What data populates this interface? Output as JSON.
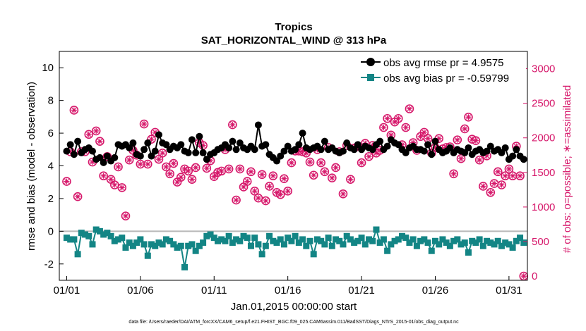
{
  "chart_data": {
    "type": "line",
    "title": "Tropics",
    "subtitle": "SAT_HORIZONTAL_WIND @ 313 hPa",
    "xlabel": "Jan.01,2015 00:00:00 start",
    "ylabel_left": "rmse and bias (model - observation)",
    "ylabel_right": "# of obs: o=possible; ∗=assimilated",
    "footer": "data file: /Users/raeder/DAI/ATM_forcXX/CAM6_setup/f.e21.FHIST_BGC.f09_025.CAM6assim.011/BadSST/Diags_NTrS_2015-01/obs_diag_output.nc",
    "x_ticks": [
      "01/01",
      "01/06",
      "01/11",
      "01/16",
      "01/21",
      "01/26",
      "01/31"
    ],
    "x_tick_days": [
      0,
      5,
      10,
      15,
      20,
      25,
      30
    ],
    "xlim": [
      -0.5,
      31.25
    ],
    "ylim_left": [
      -3,
      11
    ],
    "y_ticks_left": [
      "-2",
      "0",
      "2",
      "4",
      "6",
      "8",
      "10"
    ],
    "ylim_right": [
      -60,
      3250
    ],
    "y_ticks_right": [
      "0",
      "500",
      "1000",
      "1500",
      "2000",
      "2500",
      "3000"
    ],
    "zero_line": 0,
    "legend": {
      "position": "top-right",
      "entries": [
        "obs avg rmse pr = 4.9575",
        "obs avg bias pr = -0.59799"
      ]
    },
    "colors": {
      "rmse": "#000000",
      "bias": "#138585",
      "obs": "#d6176a",
      "zero_line": "#b8b8b8"
    },
    "x_days": [
      0,
      0.25,
      0.5,
      0.75,
      1,
      1.25,
      1.5,
      1.75,
      2,
      2.25,
      2.5,
      2.75,
      3,
      3.25,
      3.5,
      3.75,
      4,
      4.25,
      4.5,
      4.75,
      5,
      5.25,
      5.5,
      5.75,
      6,
      6.25,
      6.5,
      6.75,
      7,
      7.25,
      7.5,
      7.75,
      8,
      8.25,
      8.5,
      8.75,
      9,
      9.25,
      9.5,
      9.75,
      10,
      10.25,
      10.5,
      10.75,
      11,
      11.25,
      11.5,
      11.75,
      12,
      12.25,
      12.5,
      12.75,
      13,
      13.25,
      13.5,
      13.75,
      14,
      14.25,
      14.5,
      14.75,
      15,
      15.25,
      15.5,
      15.75,
      16,
      16.25,
      16.5,
      16.75,
      17,
      17.25,
      17.5,
      17.75,
      18,
      18.25,
      18.5,
      18.75,
      19,
      19.25,
      19.5,
      19.75,
      20,
      20.25,
      20.5,
      20.75,
      21,
      21.25,
      21.5,
      21.75,
      22,
      22.25,
      22.5,
      22.75,
      23,
      23.25,
      23.5,
      23.75,
      24,
      24.25,
      24.5,
      24.75,
      25,
      25.25,
      25.5,
      25.75,
      26,
      26.25,
      26.5,
      26.75,
      27,
      27.25,
      27.5,
      27.75,
      28,
      28.25,
      28.5,
      28.75,
      29,
      29.25,
      29.5,
      29.75,
      30,
      30.25,
      30.5,
      30.75,
      31
    ],
    "series": [
      {
        "name": "obs avg rmse pr = 4.9575",
        "axis": "left",
        "values": [
          4.9,
          5.3,
          4.7,
          5.5,
          4.8,
          5.0,
          5.1,
          4.9,
          4.4,
          4.5,
          4.2,
          4.6,
          4.3,
          4.5,
          5.3,
          5.2,
          5.3,
          5.1,
          5.4,
          4.7,
          4.6,
          5.0,
          5.4,
          4.6,
          4.9,
          5.9,
          5.4,
          5.3,
          5.0,
          5.2,
          5.1,
          5.3,
          4.9,
          4.8,
          5.6,
          4.8,
          5.8,
          4.8,
          4.4,
          4.7,
          4.8,
          5.0,
          5.1,
          5.3,
          5.1,
          5.5,
          5.0,
          5.4,
          5.1,
          5.0,
          5.2,
          5.0,
          6.5,
          5.2,
          5.3,
          4.7,
          4.5,
          4.3,
          4.6,
          4.9,
          5.2,
          4.9,
          5.0,
          5.3,
          6.0,
          5.1,
          5.0,
          5.1,
          5.2,
          5.0,
          5.5,
          5.0,
          5.1,
          4.9,
          4.8,
          4.9,
          5.4,
          5.1,
          5.0,
          5.3,
          5.0,
          5.2,
          5.1,
          5.0,
          5.3,
          5.5,
          5.0,
          5.2,
          5.6,
          5.4,
          5.3,
          5.0,
          4.8,
          5.1,
          5.2,
          5.0,
          5.0,
          4.9,
          5.3,
          4.7,
          5.5,
          5.0,
          4.8,
          4.9,
          5.1,
          4.8,
          5.0,
          4.9,
          4.8,
          5.1,
          4.7,
          4.9,
          5.0,
          4.8,
          4.9,
          5.2,
          4.9,
          5.0,
          4.8,
          5.1,
          4.4,
          4.6,
          5.0,
          4.6,
          4.4
        ],
        "color": "#000000"
      },
      {
        "name": "obs avg bias pr = -0.59799",
        "axis": "left",
        "values": [
          -0.4,
          -0.5,
          -0.5,
          -1.4,
          -0.1,
          -0.2,
          -0.3,
          -0.8,
          0.1,
          0.0,
          -0.2,
          -0.1,
          -0.3,
          -0.6,
          -0.5,
          -0.4,
          -1.0,
          -0.7,
          -0.9,
          -0.7,
          -0.5,
          -0.8,
          -1.5,
          -0.8,
          -0.9,
          -0.7,
          -0.8,
          -0.5,
          -0.6,
          -0.8,
          -1.0,
          -0.9,
          -2.2,
          -0.9,
          -0.8,
          -1.2,
          -0.9,
          -0.7,
          -0.3,
          -0.2,
          -0.4,
          -0.6,
          -0.5,
          -0.6,
          -0.3,
          -0.7,
          -0.5,
          -0.6,
          -0.3,
          -0.4,
          -0.9,
          -0.4,
          -0.8,
          -1.4,
          -0.9,
          -0.3,
          -0.6,
          -0.7,
          -0.5,
          -0.8,
          -0.4,
          -0.6,
          -0.3,
          -0.7,
          -0.5,
          -0.9,
          -0.6,
          -1.4,
          -0.5,
          -0.6,
          -0.8,
          -0.4,
          -0.9,
          -0.5,
          -0.6,
          -0.8,
          -0.3,
          -0.5,
          -0.7,
          -0.6,
          -0.4,
          -0.8,
          -0.5,
          -0.6,
          0.1,
          -0.7,
          -0.5,
          -1.2,
          -0.8,
          -0.6,
          -0.5,
          -0.3,
          -0.4,
          -0.7,
          -0.5,
          -0.9,
          -0.6,
          -0.5,
          -0.7,
          -1.2,
          -0.6,
          -0.8,
          -0.5,
          -0.7,
          -0.9,
          -0.6,
          -0.5,
          -0.8,
          -0.7,
          -1.3,
          -0.6,
          -0.7,
          -0.5,
          -0.9,
          -0.6,
          -0.7,
          -0.8,
          -0.6,
          -0.9,
          -0.7,
          -0.8,
          -1.0,
          -0.6,
          -0.4,
          -0.7
        ],
        "color": "#138585"
      },
      {
        "name": "# of obs possible",
        "axis": "right",
        "values": [
          1370,
          1800,
          2400,
          1150,
          1800,
          1800,
          2050,
          1650,
          2100,
          1950,
          1450,
          1730,
          1400,
          1320,
          1580,
          1280,
          870,
          1680,
          1820,
          1750,
          1620,
          2200,
          1620,
          1980,
          2080,
          1690,
          1780,
          1580,
          1480,
          1630,
          1360,
          1430,
          1550,
          1520,
          1400,
          1570,
          1930,
          1890,
          1560,
          1670,
          1440,
          1500,
          1520,
          1830,
          1550,
          2190,
          1100,
          1550,
          1290,
          1370,
          1510,
          1230,
          1130,
          1470,
          1090,
          1300,
          1450,
          1210,
          1180,
          1410,
          1230,
          1640,
          1810,
          1810,
          1800,
          1780,
          1650,
          1460,
          1830,
          1640,
          1510,
          1860,
          1420,
          1570,
          1800,
          1190,
          1890,
          1400,
          1850,
          1880,
          1640,
          1920,
          1730,
          1890,
          1780,
          1820,
          2150,
          2280,
          2040,
          2230,
          2280,
          1900,
          2150,
          2420,
          1930,
          1820,
          2020,
          2080,
          1990,
          1780,
          1860,
          1990,
          1840,
          1860,
          1870,
          1480,
          1970,
          1700,
          2130,
          2300,
          1980,
          1960,
          1680,
          1300,
          1740,
          1210,
          1340,
          1510,
          1320,
          1450,
          1550,
          1450,
          1880,
          1450,
          0
        ],
        "color": "#d6176a"
      }
    ]
  }
}
